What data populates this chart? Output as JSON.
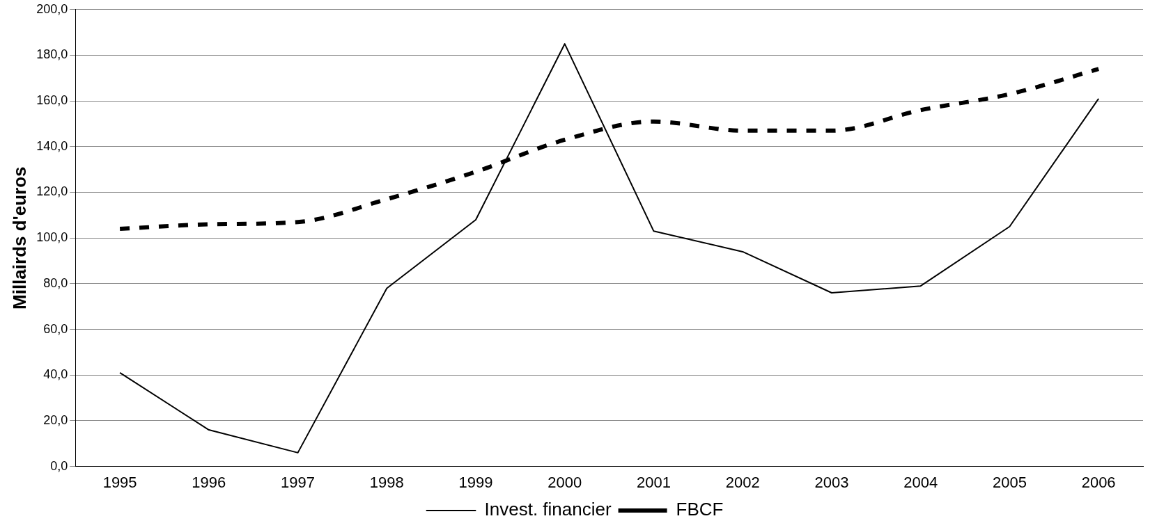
{
  "chart_data": {
    "type": "line",
    "ylabel": "Millairds d'euros",
    "categories": [
      "1995",
      "1996",
      "1997",
      "1998",
      "1999",
      "2000",
      "2001",
      "2002",
      "2003",
      "2004",
      "2005",
      "2006"
    ],
    "series": [
      {
        "name": "Invest. financier",
        "color": "#000000",
        "line_style": "solid",
        "values": [
          41,
          16,
          6,
          78,
          108,
          185,
          103,
          94,
          76,
          79,
          105,
          161
        ]
      },
      {
        "name": "FBCF",
        "color": "#000000",
        "line_style": "dashed",
        "values": [
          104,
          106,
          107,
          117,
          129,
          143,
          151,
          147,
          147,
          156,
          163,
          174
        ]
      }
    ],
    "ylim": [
      0,
      200
    ],
    "yticks": [
      {
        "value": 0,
        "label": "0,0"
      },
      {
        "value": 20,
        "label": "20,0"
      },
      {
        "value": 40,
        "label": "40,0"
      },
      {
        "value": 60,
        "label": "60,0"
      },
      {
        "value": 80,
        "label": "80,0"
      },
      {
        "value": 100,
        "label": "100,0"
      },
      {
        "value": 120,
        "label": "120,0"
      },
      {
        "value": 140,
        "label": "140,0"
      },
      {
        "value": 160,
        "label": "160,0"
      },
      {
        "value": 180,
        "label": "180,0"
      },
      {
        "value": 200,
        "label": "200,0"
      }
    ],
    "grid": "y",
    "legend": "bottom",
    "marker": "none"
  }
}
